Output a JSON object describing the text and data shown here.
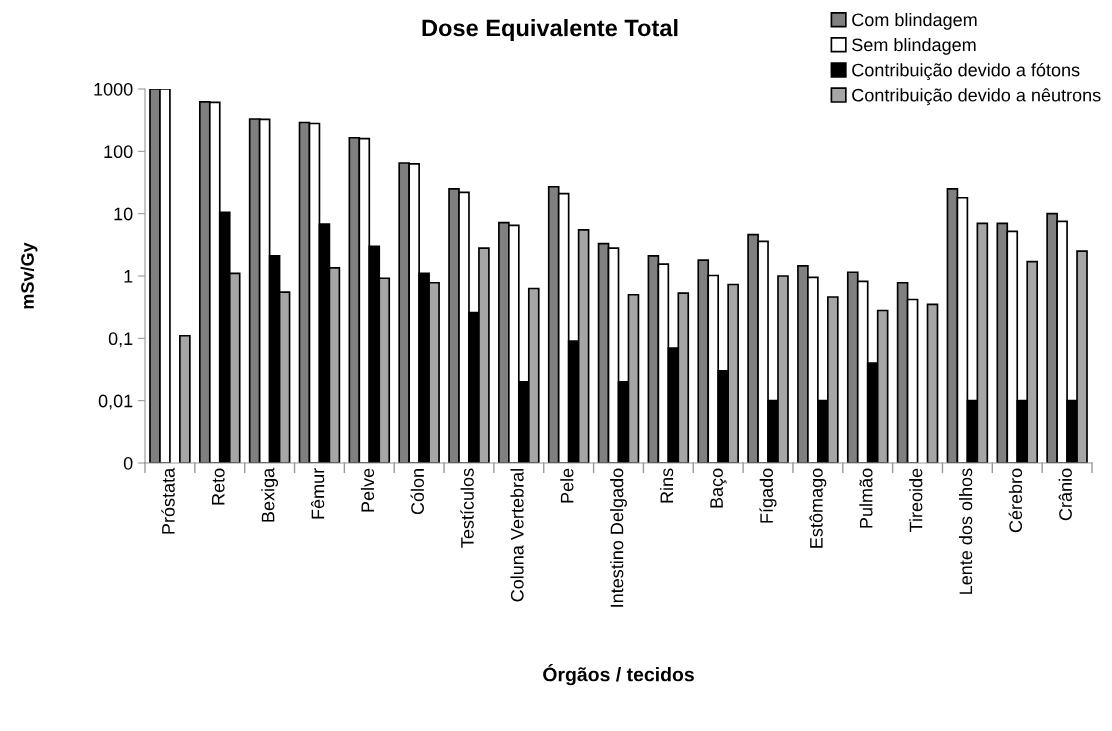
{
  "chart_data": {
    "type": "bar",
    "title": "Dose Equivalente Total",
    "xlabel": "Órgãos / tecidos",
    "ylabel": "mSv/Gy",
    "categories": [
      "Próstata",
      "Reto",
      "Bexiga",
      "Fêmur",
      "Pelve",
      "Cólon",
      "Testículos",
      "Coluna Vertebral",
      "Pele",
      "Intestino Delgado",
      "Rins",
      "Baço",
      "Fígado",
      "Estômago",
      "Pulmão",
      "Tireoide",
      "Lente dos olhos",
      "Cérebro",
      "Crânio"
    ],
    "series": [
      {
        "name": "Com blindagem",
        "color": "#808080",
        "values": [
          1000,
          620,
          330,
          290,
          165,
          65,
          25,
          7.2,
          27,
          3.3,
          2.1,
          1.8,
          4.6,
          1.45,
          1.15,
          0.78,
          25,
          7.0,
          10
        ]
      },
      {
        "name": "Sem blindagem",
        "color": "#ffffff",
        "values": [
          1000,
          610,
          325,
          280,
          160,
          63,
          22,
          6.5,
          21,
          2.8,
          1.55,
          1.02,
          3.6,
          0.95,
          0.82,
          0.42,
          18,
          5.2,
          7.5
        ]
      },
      {
        "name": "Contribuição devido a fótons",
        "color": "#000000",
        "values": [
          null,
          10.5,
          2.1,
          6.8,
          3.0,
          1.1,
          0.26,
          0.02,
          0.09,
          0.02,
          0.07,
          0.03,
          0.01,
          0.01,
          0.04,
          null,
          0.01,
          0.01,
          0.01
        ]
      },
      {
        "name": "Contribuição devido a nêutrons",
        "color": "#a6a6a6",
        "values": [
          0.11,
          1.1,
          0.55,
          1.35,
          0.92,
          0.78,
          2.8,
          0.63,
          5.5,
          0.5,
          0.53,
          0.73,
          1.0,
          0.46,
          0.28,
          0.35,
          7.0,
          1.7,
          2.5
        ]
      }
    ],
    "log": "y",
    "ylim": [
      0.001,
      1000
    ],
    "yticks": [
      {
        "value": 0.001,
        "label": "0"
      },
      {
        "value": 0.01,
        "label": "0,01"
      },
      {
        "value": 0.1,
        "label": "0,1"
      },
      1,
      10,
      100,
      1000
    ],
    "grid": false,
    "legend": "top right"
  }
}
